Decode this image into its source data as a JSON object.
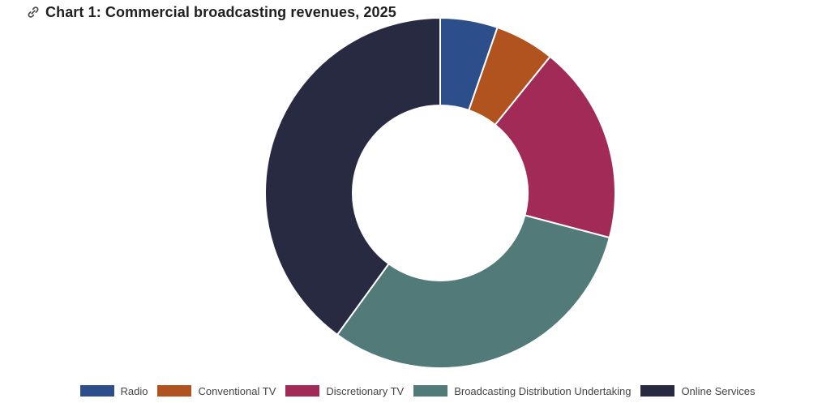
{
  "title": "Chart 1: Commercial broadcasting revenues, 2025",
  "icons": {
    "title_icon": "link-icon"
  },
  "chart_data": {
    "type": "pie",
    "donut": true,
    "title": "Chart 1: Commercial broadcasting revenues, 2025",
    "categories": [
      "Radio",
      "Conventional TV",
      "Discretionary TV",
      "Broadcasting Distribution Undertaking",
      "Online Services"
    ],
    "values": [
      5.3,
      5.5,
      18.3,
      30.9,
      40.0
    ],
    "colors": [
      "#2c4f8c",
      "#b0531e",
      "#a12a57",
      "#517a78",
      "#272a41"
    ],
    "legend_position": "bottom"
  }
}
